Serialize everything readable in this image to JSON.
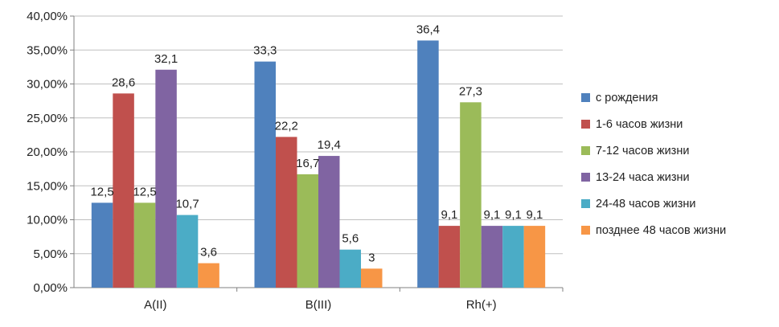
{
  "chart_data": {
    "type": "bar",
    "categories": [
      "A(II)",
      "B(III)",
      "Rh(+)"
    ],
    "series": [
      {
        "name": "с рождения",
        "values": [
          12.5,
          33.3,
          36.4
        ],
        "labels": [
          "12,5",
          "33,3",
          "36,4"
        ],
        "color": "#4F81BD"
      },
      {
        "name": "1-6 часов жизни",
        "values": [
          28.6,
          22.2,
          9.1
        ],
        "labels": [
          "28,6",
          "22,2",
          "9,1"
        ],
        "color": "#C0504D"
      },
      {
        "name": "7-12 часов жизни",
        "values": [
          12.5,
          16.7,
          27.3
        ],
        "labels": [
          "12,5",
          "16,7",
          "27,3"
        ],
        "color": "#9BBB59"
      },
      {
        "name": "13-24 часа жизни",
        "values": [
          32.1,
          19.4,
          9.1
        ],
        "labels": [
          "32,1",
          "19,4",
          "9,1"
        ],
        "color": "#8064A2"
      },
      {
        "name": "24-48 часов жизни",
        "values": [
          10.7,
          5.6,
          9.1
        ],
        "labels": [
          "10,7",
          "5,6",
          "9,1"
        ],
        "color": "#4BACC6"
      },
      {
        "name": "позднее 48 часов жизни",
        "values": [
          3.6,
          2.8,
          9.1
        ],
        "labels": [
          "3,6",
          "3",
          "9,1"
        ],
        "color": "#F79646"
      }
    ],
    "yticks": [
      "0,00%",
      "5,00%",
      "10,00%",
      "15,00%",
      "20,00%",
      "25,00%",
      "30,00%",
      "35,00%",
      "40,00%"
    ],
    "ylim": [
      0,
      40
    ],
    "ystep": 5,
    "grid": true,
    "legend": "right",
    "title": "",
    "xlabel": "",
    "ylabel": ""
  }
}
